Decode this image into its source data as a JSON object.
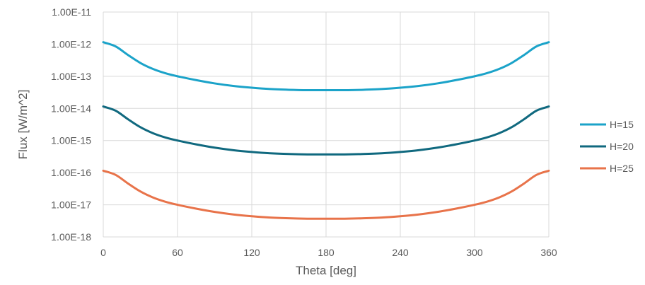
{
  "chart_data": {
    "type": "line",
    "title": "",
    "xlabel": "Theta [deg]",
    "ylabel": "Flux [W/m^2]",
    "xlim": [
      0,
      360
    ],
    "x_ticks": [
      0,
      60,
      120,
      180,
      240,
      300,
      360
    ],
    "x_tick_labels": [
      "0",
      "60",
      "120",
      "180",
      "240",
      "300",
      "360"
    ],
    "y_scale": "log",
    "ylim": [
      1e-18,
      1e-11
    ],
    "y_ticks": [
      1e-11,
      1e-12,
      1e-13,
      1e-14,
      1e-15,
      1e-16,
      1e-17,
      1e-18
    ],
    "y_tick_labels": [
      "1.00E-11",
      "1.00E-12",
      "1.00E-13",
      "1.00E-14",
      "1.00E-15",
      "1.00E-16",
      "1.00E-17",
      "1.00E-18"
    ],
    "grid": true,
    "legend_position": "right",
    "x": [
      0,
      10,
      20,
      30,
      40,
      50,
      60,
      75,
      90,
      105,
      120,
      135,
      150,
      165,
      180,
      195,
      210,
      225,
      240,
      255,
      270,
      285,
      300,
      310,
      320,
      330,
      340,
      350,
      360
    ],
    "series": [
      {
        "name": "H=15",
        "color": "#1BA3C9",
        "values": [
          1.15e-12,
          8.5e-13,
          4.6e-13,
          2.6e-13,
          1.7e-13,
          1.25e-13,
          1e-13,
          7.6e-14,
          6e-14,
          5e-14,
          4.4e-14,
          4e-14,
          3.8e-14,
          3.7e-14,
          3.7e-14,
          3.7e-14,
          3.8e-14,
          4e-14,
          4.4e-14,
          5e-14,
          6e-14,
          7.6e-14,
          1e-13,
          1.25e-13,
          1.7e-13,
          2.6e-13,
          4.6e-13,
          8.5e-13,
          1.15e-12
        ]
      },
      {
        "name": "H=20",
        "color": "#10697F",
        "values": [
          1.15e-14,
          8.5e-15,
          4.6e-15,
          2.6e-15,
          1.7e-15,
          1.25e-15,
          1e-15,
          7.6e-16,
          6e-16,
          5e-16,
          4.4e-16,
          4e-16,
          3.8e-16,
          3.7e-16,
          3.7e-16,
          3.7e-16,
          3.8e-16,
          4e-16,
          4.4e-16,
          5e-16,
          6e-16,
          7.6e-16,
          1e-15,
          1.25e-15,
          1.7e-15,
          2.6e-15,
          4.6e-15,
          8.5e-15,
          1.15e-14
        ]
      },
      {
        "name": "H=25",
        "color": "#E8734A",
        "values": [
          1.15e-16,
          8.5e-17,
          4.6e-17,
          2.6e-17,
          1.7e-17,
          1.25e-17,
          1e-17,
          7.6e-18,
          6e-18,
          5e-18,
          4.4e-18,
          4e-18,
          3.8e-18,
          3.7e-18,
          3.7e-18,
          3.7e-18,
          3.8e-18,
          4e-18,
          4.4e-18,
          5e-18,
          6e-18,
          7.6e-18,
          1e-17,
          1.25e-17,
          1.7e-17,
          2.6e-17,
          4.6e-17,
          8.5e-17,
          1.15e-16
        ]
      }
    ]
  }
}
